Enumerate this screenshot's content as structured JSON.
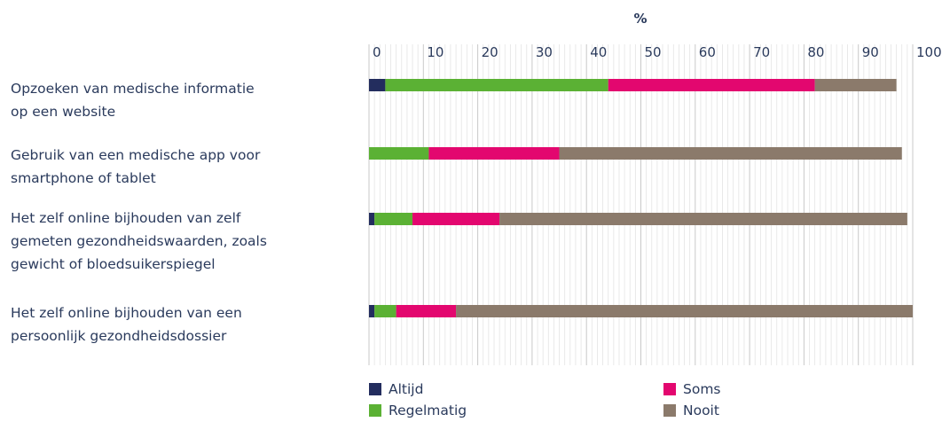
{
  "chart_data": {
    "type": "bar",
    "stacked": true,
    "orientation": "horizontal",
    "xlabel": "%",
    "xlim": [
      0,
      100
    ],
    "ticks": [
      "0",
      "10",
      "20",
      "30",
      "40",
      "50",
      "60",
      "70",
      "80",
      "90",
      "100"
    ],
    "grid": true,
    "legend_position": "bottom",
    "categories": [
      "Opzoeken van medische informatie op een website",
      "Gebruik van een medische app voor smartphone of tablet",
      "Het zelf online bijhouden van zelf gemeten gezondheidswaarden, zoals gewicht of bloedsuikerspiegel",
      "Het zelf online bijhouden van een persoonlijk gezondheidsdossier"
    ],
    "series": [
      {
        "name": "Altijd",
        "color": "#232d5e",
        "values": [
          3,
          0,
          1,
          1
        ]
      },
      {
        "name": "Regelmatig",
        "color": "#5bb134",
        "values": [
          41,
          11,
          7,
          4
        ]
      },
      {
        "name": "Soms",
        "color": "#e3076f",
        "values": [
          38,
          24,
          16,
          11
        ]
      },
      {
        "name": "Nooit",
        "color": "#8b7a6b",
        "values": [
          15,
          63,
          75,
          84
        ]
      }
    ]
  },
  "labels": [
    [
      "Opzoeken van medische informatie",
      "op een website"
    ],
    [
      "Gebruik van een medische app voor",
      "smartphone of tablet"
    ],
    [
      "Het zelf online bijhouden van zelf",
      "gemeten gezondheidswaarden, zoals",
      "gewicht of bloedsuikerspiegel"
    ],
    [
      "Het zelf online bijhouden van een",
      "persoonlijk gezondheidsdossier"
    ]
  ],
  "legend": [
    "Altijd",
    "Regelmatig",
    "Soms",
    "Nooit"
  ]
}
